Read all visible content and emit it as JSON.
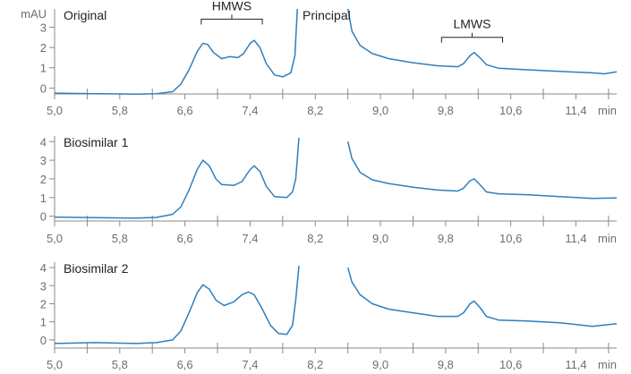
{
  "chart_data": [
    {
      "type": "line",
      "title": "Original",
      "ylabel": "mAU",
      "xlabel": "min",
      "xlim": [
        5.0,
        11.9
      ],
      "ylim": [
        -0.6,
        3.9
      ],
      "yticks": [
        0,
        1,
        2,
        3
      ],
      "yticklabels": [
        "0",
        "1",
        "2",
        "3"
      ],
      "xticks": [
        5.0,
        5.8,
        6.6,
        7.4,
        8.2,
        9.0,
        9.8,
        10.6,
        11.4
      ],
      "xticklabels": [
        "5,0",
        "5,8",
        "6,6",
        "7,4",
        "8,2",
        "9,0",
        "9,8",
        "10,6",
        "11,4"
      ],
      "grid": false,
      "annotations": [
        {
          "label": "HMWS",
          "bracket": [
            6.8,
            7.55
          ],
          "y": 3.4
        },
        {
          "label": "Principal",
          "x": 8.0
        },
        {
          "label": "LMWS",
          "bracket": [
            9.75,
            10.5
          ],
          "y": 2.5
        }
      ],
      "segments": [
        [
          [
            5.0,
            -0.25
          ],
          [
            5.5,
            -0.28
          ],
          [
            6.0,
            -0.3
          ],
          [
            6.25,
            -0.28
          ],
          [
            6.45,
            -0.18
          ],
          [
            6.55,
            0.2
          ],
          [
            6.65,
            0.9
          ],
          [
            6.75,
            1.8
          ],
          [
            6.82,
            2.2
          ],
          [
            6.88,
            2.15
          ],
          [
            6.95,
            1.75
          ],
          [
            7.05,
            1.45
          ],
          [
            7.15,
            1.55
          ],
          [
            7.25,
            1.5
          ],
          [
            7.32,
            1.7
          ],
          [
            7.4,
            2.2
          ],
          [
            7.45,
            2.35
          ],
          [
            7.52,
            2.0
          ],
          [
            7.6,
            1.2
          ],
          [
            7.7,
            0.65
          ],
          [
            7.8,
            0.55
          ],
          [
            7.9,
            0.75
          ],
          [
            7.95,
            1.6
          ],
          [
            7.98,
            3.9
          ]
        ],
        [
          [
            8.6,
            3.9
          ],
          [
            8.65,
            2.8
          ],
          [
            8.75,
            2.1
          ],
          [
            8.9,
            1.7
          ],
          [
            9.1,
            1.45
          ],
          [
            9.4,
            1.25
          ],
          [
            9.7,
            1.1
          ],
          [
            9.95,
            1.05
          ],
          [
            10.02,
            1.2
          ],
          [
            10.1,
            1.6
          ],
          [
            10.15,
            1.75
          ],
          [
            10.22,
            1.5
          ],
          [
            10.3,
            1.15
          ],
          [
            10.45,
            0.98
          ],
          [
            10.8,
            0.9
          ],
          [
            11.2,
            0.82
          ],
          [
            11.6,
            0.75
          ],
          [
            11.75,
            0.7
          ],
          [
            11.9,
            0.8
          ]
        ]
      ]
    },
    {
      "type": "line",
      "title": "Biosimilar 1",
      "xlabel": "min",
      "xlim": [
        5.0,
        11.9
      ],
      "ylim": [
        -0.5,
        4.3
      ],
      "yticks": [
        0,
        1,
        2,
        3,
        4
      ],
      "yticklabels": [
        "0",
        "1",
        "2",
        "3",
        "4"
      ],
      "xticks": [
        5.0,
        5.8,
        6.6,
        7.4,
        8.2,
        9.0,
        9.8,
        10.6,
        11.4
      ],
      "xticklabels": [
        "5,0",
        "5,8",
        "6,6",
        "7,4",
        "8,2",
        "9,0",
        "9,8",
        "10,6",
        "11,4"
      ],
      "grid": false,
      "segments": [
        [
          [
            5.0,
            -0.05
          ],
          [
            5.5,
            -0.08
          ],
          [
            6.0,
            -0.1
          ],
          [
            6.25,
            -0.07
          ],
          [
            6.45,
            0.1
          ],
          [
            6.55,
            0.5
          ],
          [
            6.65,
            1.4
          ],
          [
            6.75,
            2.5
          ],
          [
            6.82,
            3.0
          ],
          [
            6.9,
            2.7
          ],
          [
            6.98,
            2.0
          ],
          [
            7.05,
            1.7
          ],
          [
            7.2,
            1.65
          ],
          [
            7.3,
            1.85
          ],
          [
            7.4,
            2.5
          ],
          [
            7.45,
            2.7
          ],
          [
            7.52,
            2.4
          ],
          [
            7.6,
            1.6
          ],
          [
            7.7,
            1.05
          ],
          [
            7.85,
            1.0
          ],
          [
            7.92,
            1.3
          ],
          [
            7.96,
            2.0
          ],
          [
            8.0,
            4.2
          ]
        ],
        [
          [
            8.6,
            4.0
          ],
          [
            8.65,
            3.1
          ],
          [
            8.75,
            2.35
          ],
          [
            8.9,
            1.95
          ],
          [
            9.1,
            1.75
          ],
          [
            9.4,
            1.55
          ],
          [
            9.7,
            1.4
          ],
          [
            9.95,
            1.35
          ],
          [
            10.02,
            1.5
          ],
          [
            10.1,
            1.9
          ],
          [
            10.15,
            2.0
          ],
          [
            10.22,
            1.7
          ],
          [
            10.3,
            1.3
          ],
          [
            10.45,
            1.2
          ],
          [
            10.8,
            1.15
          ],
          [
            11.2,
            1.05
          ],
          [
            11.6,
            0.95
          ],
          [
            11.9,
            0.98
          ]
        ]
      ]
    },
    {
      "type": "line",
      "title": "Biosimilar 2",
      "xlabel": "min",
      "xlim": [
        5.0,
        11.9
      ],
      "ylim": [
        -0.6,
        4.3
      ],
      "yticks": [
        0,
        1,
        2,
        3,
        4
      ],
      "yticklabels": [
        "0",
        "1",
        "2",
        "3",
        "4"
      ],
      "xticks": [
        5.0,
        5.8,
        6.6,
        7.4,
        8.2,
        9.0,
        9.8,
        10.6,
        11.4
      ],
      "xticklabels": [
        "5,0",
        "5,8",
        "6,6",
        "7,4",
        "8,2",
        "9,0",
        "9,8",
        "10,6",
        "11,4"
      ],
      "grid": false,
      "segments": [
        [
          [
            5.0,
            -0.2
          ],
          [
            5.5,
            -0.15
          ],
          [
            6.0,
            -0.2
          ],
          [
            6.25,
            -0.15
          ],
          [
            6.45,
            0.0
          ],
          [
            6.55,
            0.5
          ],
          [
            6.65,
            1.5
          ],
          [
            6.75,
            2.6
          ],
          [
            6.82,
            3.05
          ],
          [
            6.9,
            2.8
          ],
          [
            6.98,
            2.2
          ],
          [
            7.08,
            1.9
          ],
          [
            7.2,
            2.1
          ],
          [
            7.3,
            2.5
          ],
          [
            7.38,
            2.65
          ],
          [
            7.45,
            2.5
          ],
          [
            7.55,
            1.7
          ],
          [
            7.65,
            0.8
          ],
          [
            7.75,
            0.35
          ],
          [
            7.85,
            0.3
          ],
          [
            7.92,
            0.8
          ],
          [
            7.96,
            2.2
          ],
          [
            8.0,
            4.1
          ]
        ],
        [
          [
            8.6,
            4.0
          ],
          [
            8.65,
            3.2
          ],
          [
            8.75,
            2.5
          ],
          [
            8.9,
            2.0
          ],
          [
            9.1,
            1.7
          ],
          [
            9.4,
            1.5
          ],
          [
            9.7,
            1.3
          ],
          [
            9.95,
            1.3
          ],
          [
            10.02,
            1.5
          ],
          [
            10.1,
            2.0
          ],
          [
            10.15,
            2.15
          ],
          [
            10.22,
            1.8
          ],
          [
            10.3,
            1.3
          ],
          [
            10.45,
            1.1
          ],
          [
            10.8,
            1.05
          ],
          [
            11.2,
            0.95
          ],
          [
            11.6,
            0.75
          ],
          [
            11.9,
            0.9
          ]
        ]
      ]
    }
  ]
}
